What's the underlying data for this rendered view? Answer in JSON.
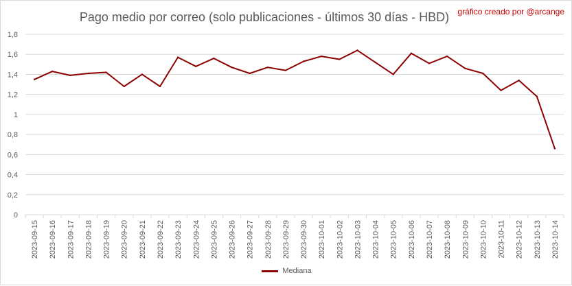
{
  "header": {
    "title": "Pago medio por correo (solo publicaciones - últimos 30 días - HBD)",
    "credit": "gráfico creado por @arcange"
  },
  "colors": {
    "series": "#8b0000",
    "grid": "#d9d9d9",
    "axis_text": "#595959"
  },
  "chart_data": {
    "type": "line",
    "title": "Pago medio por correo (solo publicaciones - últimos 30 días - HBD)",
    "xlabel": "",
    "ylabel": "",
    "ylim": [
      0,
      1.8
    ],
    "yticks": [
      "0",
      "0,2",
      "0,4",
      "0,6",
      "0,8",
      "1",
      "1,2",
      "1,4",
      "1,6",
      "1,8"
    ],
    "grid": true,
    "legend_position": "bottom",
    "x": [
      "2023-09-15",
      "2023-09-16",
      "2023-09-17",
      "2023-09-18",
      "2023-09-19",
      "2023-09-20",
      "2023-09-21",
      "2023-09-22",
      "2023-09-23",
      "2023-09-24",
      "2023-09-25",
      "2023-09-26",
      "2023-09-27",
      "2023-09-28",
      "2023-09-29",
      "2023-09-30",
      "2023-10-01",
      "2023-10-02",
      "2023-10-03",
      "2023-10-04",
      "2023-10-05",
      "2023-10-06",
      "2023-10-07",
      "2023-10-08",
      "2023-10-09",
      "2023-10-10",
      "2023-10-11",
      "2023-10-12",
      "2023-10-13",
      "2023-10-14"
    ],
    "series": [
      {
        "name": "Mediana",
        "values": [
          1.35,
          1.43,
          1.39,
          1.41,
          1.42,
          1.28,
          1.4,
          1.28,
          1.57,
          1.48,
          1.56,
          1.47,
          1.41,
          1.47,
          1.44,
          1.53,
          1.58,
          1.55,
          1.64,
          1.52,
          1.4,
          1.61,
          1.51,
          1.58,
          1.46,
          1.41,
          1.24,
          1.34,
          1.18,
          0.66
        ]
      }
    ]
  }
}
